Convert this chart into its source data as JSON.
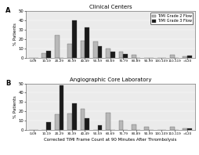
{
  "title_A": "Clinical Centers",
  "title_B": "Angiographic Core Laboratory",
  "xlabel": "Corrected TIMI Frame Count at 90 Minutes After Thrombolysis",
  "ylabel": "% Patients",
  "panel_A_label": "A",
  "panel_B_label": "B",
  "categories": [
    "0-09",
    "10-19",
    "20-29",
    "30-39",
    "40-49",
    "50-59",
    "60-69",
    "70-79",
    "80-89",
    "90-99",
    "100-109",
    "110-119",
    ">120"
  ],
  "panel_A_grade2": [
    0,
    5,
    24,
    15,
    18,
    17,
    10,
    6,
    3,
    0,
    0,
    3,
    1
  ],
  "panel_A_grade3": [
    0,
    7,
    0,
    40,
    32,
    12,
    6,
    4,
    0,
    0,
    0,
    0,
    2
  ],
  "panel_B_grade2": [
    0,
    0,
    17,
    18,
    23,
    0,
    19,
    10,
    6,
    4,
    0,
    4,
    2
  ],
  "panel_B_grade3": [
    0,
    9,
    48,
    29,
    13,
    5,
    0,
    0,
    0,
    0,
    0,
    0,
    2
  ],
  "color_grade2": "#b8b8b8",
  "color_grade3": "#1a1a1a",
  "legend_grade2": "TIMI Grade 2 Flow",
  "legend_grade3": "TIMI Grade 3 Flow",
  "ylim": [
    0,
    50
  ],
  "yticks": [
    0,
    10,
    20,
    30,
    40,
    50
  ],
  "background_color": "#ebebeb"
}
